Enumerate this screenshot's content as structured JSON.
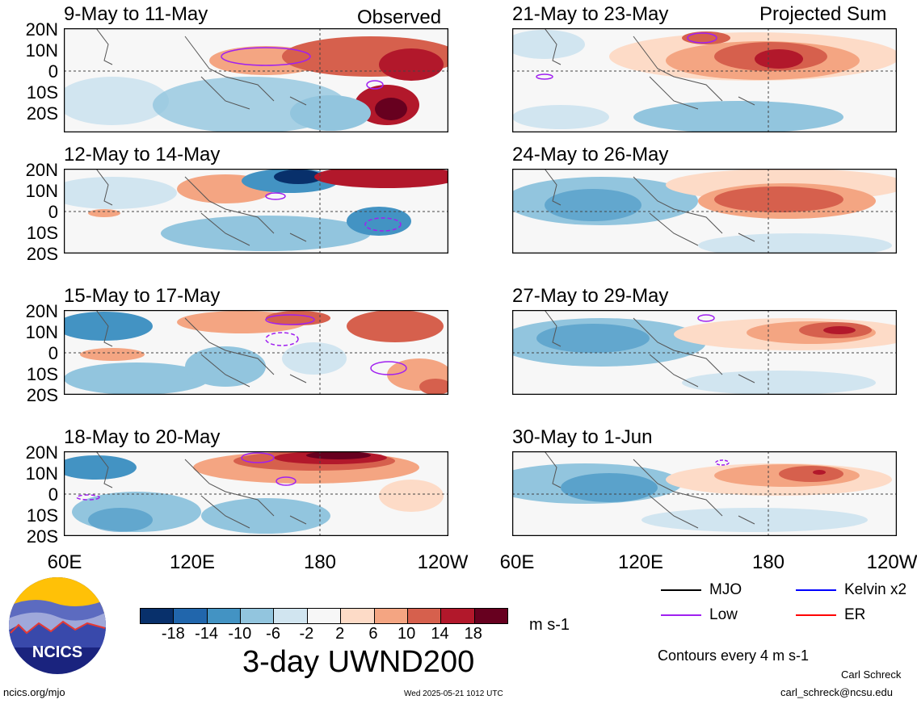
{
  "panels": [
    {
      "title": "9-May to 11-May",
      "tag": "Observed"
    },
    {
      "title": "21-May to 23-May",
      "tag": "Projected Sum"
    },
    {
      "title": "12-May to 14-May",
      "tag": ""
    },
    {
      "title": "24-May to 26-May",
      "tag": ""
    },
    {
      "title": "15-May to 17-May",
      "tag": ""
    },
    {
      "title": "27-May to 29-May",
      "tag": ""
    },
    {
      "title": "18-May to 20-May",
      "tag": ""
    },
    {
      "title": "30-May to 1-Jun",
      "tag": ""
    }
  ],
  "lat_labels": [
    "20N",
    "10N",
    "0",
    "10S",
    "20S"
  ],
  "lon_labels": [
    "60E",
    "120E",
    "180",
    "120W"
  ],
  "colorbar": {
    "levels": [
      "-18",
      "-14",
      "-10",
      "-6",
      "-2",
      "2",
      "6",
      "10",
      "14",
      "18"
    ],
    "colors": [
      "#08306b",
      "#2166ac",
      "#4393c3",
      "#92c5de",
      "#d1e5f0",
      "#f7f7f7",
      "#fddbc7",
      "#f4a582",
      "#d6604d",
      "#b2182b",
      "#67001f"
    ],
    "units": "m s-1"
  },
  "main_title": "3-day UWND200",
  "legend": {
    "items": [
      {
        "label": "MJO",
        "color": "#000000"
      },
      {
        "label": "Kelvin x2",
        "color": "#0000ff"
      },
      {
        "label": "Low",
        "color": "#a020f0"
      },
      {
        "label": "ER",
        "color": "#ff0000"
      }
    ],
    "contour_note": "Contours every 4 m s-1"
  },
  "logo_text": "NCICS",
  "footer": {
    "left": "ncics.org/mjo",
    "center": "Wed 2025-05-21 1012 UTC",
    "author": "Carl Schreck",
    "email": "carl_schreck@ncsu.edu"
  }
}
